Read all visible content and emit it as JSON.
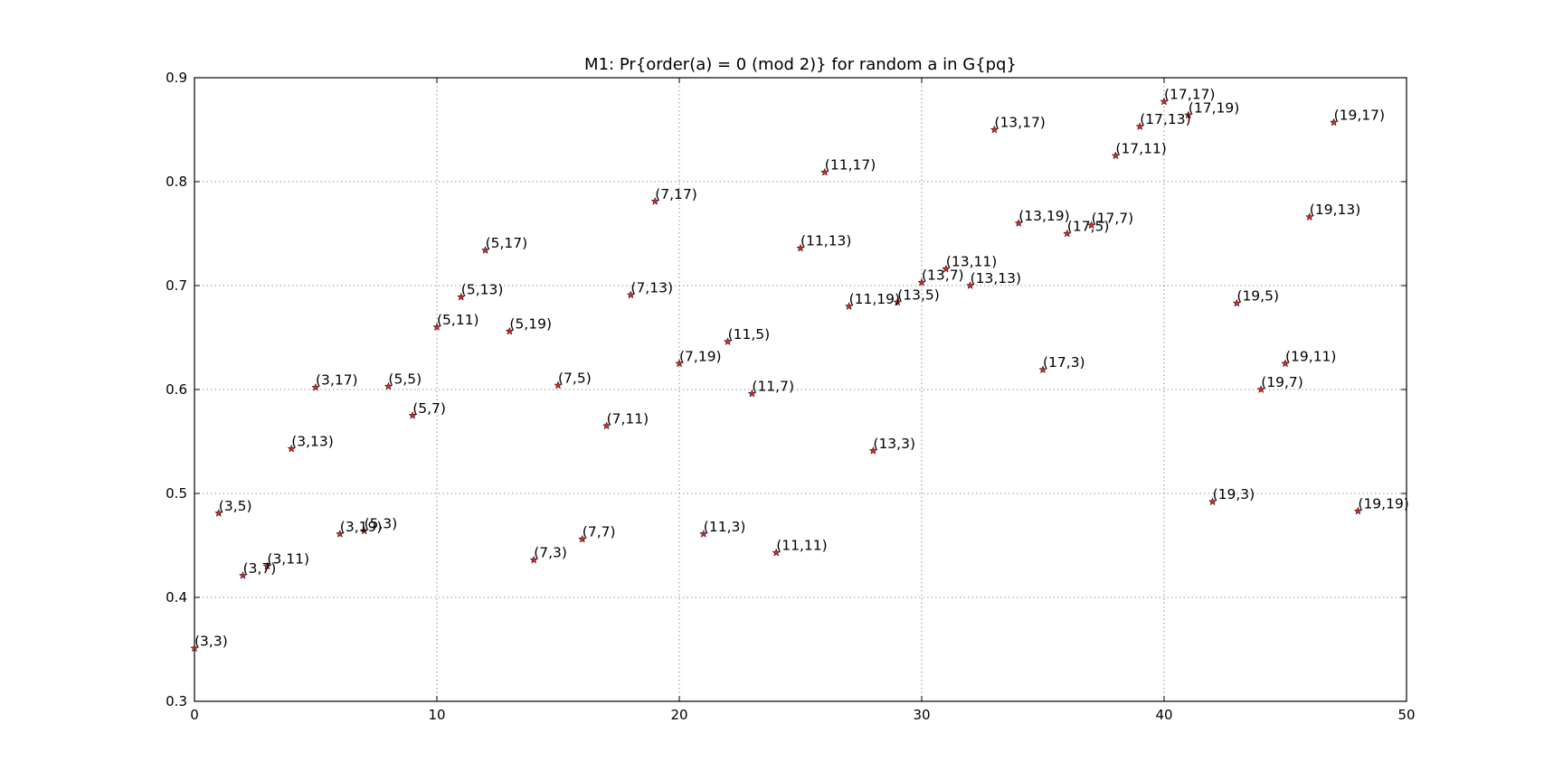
{
  "chart_data": {
    "type": "scatter",
    "title": "M1: Pr{order(a) = 0 (mod 2)} for random a in G{pq}",
    "xlabel": "",
    "ylabel": "",
    "xlim": [
      0,
      50
    ],
    "ylim": [
      0.3,
      0.9
    ],
    "x_ticks": [
      0,
      10,
      20,
      30,
      40,
      50
    ],
    "y_ticks": [
      0.3,
      0.4,
      0.5,
      0.6,
      0.7,
      0.8,
      0.9
    ],
    "x_tick_labels": [
      "0",
      "10",
      "20",
      "30",
      "40",
      "50"
    ],
    "y_tick_labels": [
      "0.3",
      "0.4",
      "0.5",
      "0.6",
      "0.7",
      "0.8",
      "0.9"
    ],
    "grid": true,
    "marker": "star",
    "marker_color": "#d62728",
    "points": [
      {
        "x": 0,
        "y": 0.351,
        "label": "(3,3)"
      },
      {
        "x": 1,
        "y": 0.481,
        "label": "(3,5)"
      },
      {
        "x": 2,
        "y": 0.421,
        "label": "(3,7)"
      },
      {
        "x": 3,
        "y": 0.43,
        "label": "(3,11)"
      },
      {
        "x": 4,
        "y": 0.543,
        "label": "(3,13)"
      },
      {
        "x": 5,
        "y": 0.602,
        "label": "(3,17)"
      },
      {
        "x": 6,
        "y": 0.461,
        "label": "(3,19)"
      },
      {
        "x": 7,
        "y": 0.464,
        "label": "(5,3)"
      },
      {
        "x": 8,
        "y": 0.603,
        "label": "(5,5)"
      },
      {
        "x": 9,
        "y": 0.575,
        "label": "(5,7)"
      },
      {
        "x": 10,
        "y": 0.66,
        "label": "(5,11)"
      },
      {
        "x": 11,
        "y": 0.689,
        "label": "(5,13)"
      },
      {
        "x": 12,
        "y": 0.734,
        "label": "(5,17)"
      },
      {
        "x": 13,
        "y": 0.656,
        "label": "(5,19)"
      },
      {
        "x": 14,
        "y": 0.436,
        "label": "(7,3)"
      },
      {
        "x": 15,
        "y": 0.604,
        "label": "(7,5)"
      },
      {
        "x": 16,
        "y": 0.456,
        "label": "(7,7)"
      },
      {
        "x": 17,
        "y": 0.565,
        "label": "(7,11)"
      },
      {
        "x": 18,
        "y": 0.691,
        "label": "(7,13)"
      },
      {
        "x": 19,
        "y": 0.781,
        "label": "(7,17)"
      },
      {
        "x": 20,
        "y": 0.625,
        "label": "(7,19)"
      },
      {
        "x": 21,
        "y": 0.461,
        "label": "(11,3)"
      },
      {
        "x": 22,
        "y": 0.646,
        "label": "(11,5)"
      },
      {
        "x": 23,
        "y": 0.596,
        "label": "(11,7)"
      },
      {
        "x": 24,
        "y": 0.443,
        "label": "(11,11)"
      },
      {
        "x": 25,
        "y": 0.736,
        "label": "(11,13)"
      },
      {
        "x": 26,
        "y": 0.809,
        "label": "(11,17)"
      },
      {
        "x": 27,
        "y": 0.68,
        "label": "(11,19)"
      },
      {
        "x": 28,
        "y": 0.541,
        "label": "(13,3)"
      },
      {
        "x": 29,
        "y": 0.684,
        "label": "(13,5)"
      },
      {
        "x": 30,
        "y": 0.703,
        "label": "(13,7)"
      },
      {
        "x": 31,
        "y": 0.716,
        "label": "(13,11)"
      },
      {
        "x": 32,
        "y": 0.7,
        "label": "(13,13)"
      },
      {
        "x": 33,
        "y": 0.85,
        "label": "(13,17)"
      },
      {
        "x": 34,
        "y": 0.76,
        "label": "(13,19)"
      },
      {
        "x": 35,
        "y": 0.619,
        "label": "(17,3)"
      },
      {
        "x": 36,
        "y": 0.75,
        "label": "(17,5)"
      },
      {
        "x": 37,
        "y": 0.758,
        "label": "(17,7)"
      },
      {
        "x": 38,
        "y": 0.825,
        "label": "(17,11)"
      },
      {
        "x": 39,
        "y": 0.853,
        "label": "(17,13)"
      },
      {
        "x": 40,
        "y": 0.877,
        "label": "(17,17)"
      },
      {
        "x": 41,
        "y": 0.864,
        "label": "(17,19)"
      },
      {
        "x": 42,
        "y": 0.492,
        "label": "(19,3)"
      },
      {
        "x": 43,
        "y": 0.683,
        "label": "(19,5)"
      },
      {
        "x": 44,
        "y": 0.6,
        "label": "(19,7)"
      },
      {
        "x": 45,
        "y": 0.625,
        "label": "(19,11)"
      },
      {
        "x": 46,
        "y": 0.766,
        "label": "(19,13)"
      },
      {
        "x": 47,
        "y": 0.857,
        "label": "(19,17)"
      },
      {
        "x": 48,
        "y": 0.483,
        "label": "(19,19)"
      }
    ]
  }
}
